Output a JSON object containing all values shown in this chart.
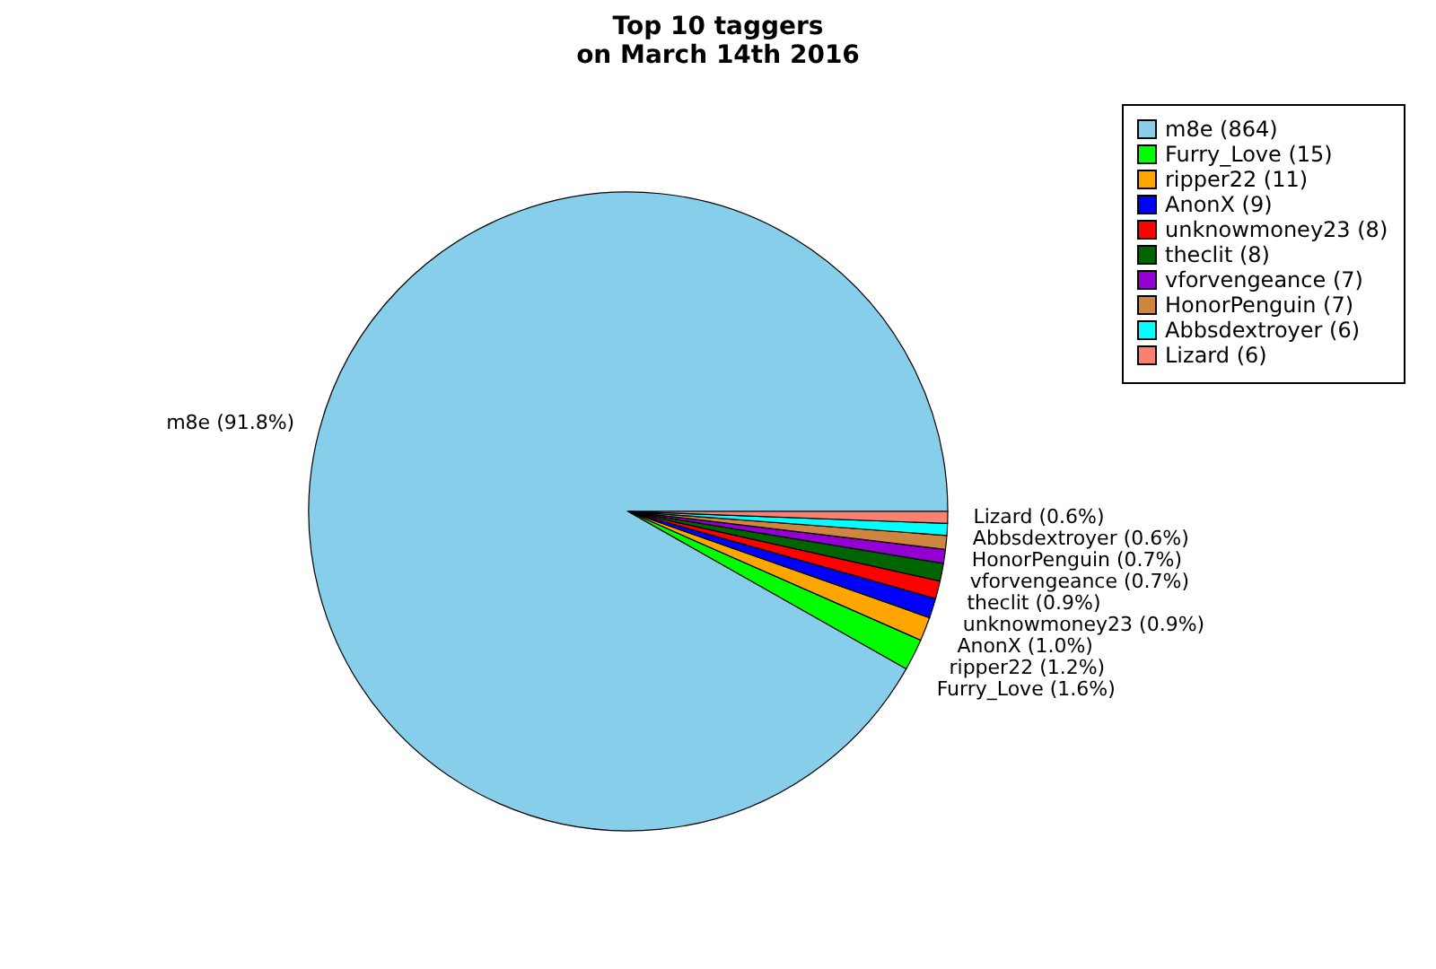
{
  "chart_data": {
    "type": "pie",
    "title": "Top 10 taggers\non March 14th 2016",
    "categories": [
      "m8e (864)",
      "Furry_Love (15)",
      "ripper22 (11)",
      "AnonX (9)",
      "unknowmoney23 (8)",
      "theclit (8)",
      "vforvengeance (7)",
      "HonorPenguin (7)",
      "Abbsdextroyer (6)",
      "Lizard (6)"
    ],
    "values": [
      91.8,
      1.6,
      1.2,
      1.0,
      0.9,
      0.9,
      0.7,
      0.7,
      0.6,
      0.6
    ],
    "value_labels": [
      "m8e (91.8%)",
      "Furry_Love (1.6%)",
      "ripper22 (1.2%)",
      "AnonX (1.0%)",
      "unknowmoney23 (0.9%)",
      "theclit (0.9%)",
      "vforvengeance (0.7%)",
      "HonorPenguin (0.7%)",
      "Abbsdextroyer (0.6%)",
      "Lizard (0.6%)"
    ],
    "colors": [
      "#87ceeb",
      "#00ff00",
      "#ffa500",
      "#0000ff",
      "#ff0000",
      "#006400",
      "#9400d3",
      "#cd853f",
      "#00ffff",
      "#fa8072"
    ],
    "legend": "top right"
  }
}
